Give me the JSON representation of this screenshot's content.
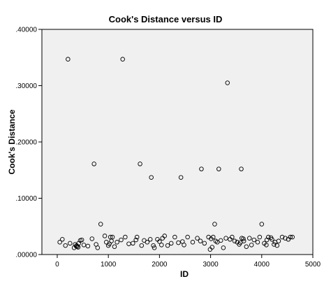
{
  "chart_data": {
    "type": "scatter",
    "title": "Cook's Distance versus ID",
    "xlabel": "ID",
    "ylabel": "Cook's Distance",
    "xlim": [
      -300,
      5000
    ],
    "ylim": [
      0,
      0.4
    ],
    "x_ticks": [
      0,
      1000,
      2000,
      3000,
      4000,
      5000
    ],
    "x_tick_labels": [
      "0",
      "1000",
      "2000",
      "3000",
      "4000",
      "5000"
    ],
    "y_ticks": [
      0,
      0.1,
      0.2,
      0.3,
      0.4
    ],
    "y_tick_labels": [
      ".00000",
      ".10000",
      ".20000",
      ".30000",
      ".40000"
    ],
    "grid": false,
    "legend": "none",
    "marker": "open-circle",
    "colors": {
      "plot_bg": "#f0f0f0",
      "page_bg": "#ffffff",
      "marker": "#000000",
      "axis": "#000000"
    },
    "x": [
      210,
      1280,
      3330,
      720,
      1620,
      1840,
      2420,
      2820,
      3160,
      3600,
      850,
      3080,
      4000,
      50,
      100,
      160,
      250,
      330,
      350,
      370,
      390,
      420,
      450,
      480,
      520,
      600,
      680,
      760,
      790,
      930,
      960,
      1000,
      1040,
      1080,
      1120,
      1170,
      1250,
      1330,
      1400,
      1480,
      1540,
      1560,
      1650,
      1700,
      1760,
      1820,
      1880,
      1900,
      1960,
      2000,
      2060,
      2100,
      2160,
      2230,
      2300,
      2370,
      2450,
      2480,
      2550,
      2650,
      2740,
      2800,
      2880,
      2960,
      2990,
      3010,
      3050,
      3100,
      3130,
      3200,
      3250,
      3300,
      3380,
      3420,
      3470,
      3520,
      3560,
      3610,
      3650,
      3700,
      3760,
      3800,
      3850,
      3920,
      3960,
      4050,
      4090,
      4130,
      4200,
      4260,
      4300,
      4330,
      4400,
      4460,
      4520,
      4560,
      4600,
      380,
      410,
      1020,
      1060,
      2040,
      3030,
      3580,
      3640,
      4100,
      4180,
      4240
    ],
    "y": [
      0.347,
      0.347,
      0.305,
      0.161,
      0.161,
      0.137,
      0.137,
      0.152,
      0.152,
      0.152,
      0.054,
      0.054,
      0.054,
      0.022,
      0.027,
      0.016,
      0.02,
      0.012,
      0.018,
      0.015,
      0.014,
      0.02,
      0.025,
      0.026,
      0.017,
      0.015,
      0.028,
      0.018,
      0.012,
      0.033,
      0.022,
      0.016,
      0.031,
      0.031,
      0.014,
      0.022,
      0.026,
      0.031,
      0.019,
      0.02,
      0.026,
      0.031,
      0.016,
      0.025,
      0.022,
      0.027,
      0.016,
      0.012,
      0.027,
      0.023,
      0.029,
      0.033,
      0.016,
      0.02,
      0.031,
      0.021,
      0.023,
      0.017,
      0.031,
      0.022,
      0.029,
      0.024,
      0.02,
      0.031,
      0.009,
      0.028,
      0.031,
      0.024,
      0.022,
      0.025,
      0.012,
      0.029,
      0.027,
      0.031,
      0.024,
      0.022,
      0.018,
      0.029,
      0.024,
      0.014,
      0.029,
      0.017,
      0.026,
      0.022,
      0.031,
      0.02,
      0.017,
      0.031,
      0.027,
      0.022,
      0.016,
      0.024,
      0.031,
      0.029,
      0.027,
      0.031,
      0.031,
      0.016,
      0.013,
      0.019,
      0.024,
      0.017,
      0.013,
      0.021,
      0.028,
      0.026,
      0.03,
      0.018
    ]
  }
}
